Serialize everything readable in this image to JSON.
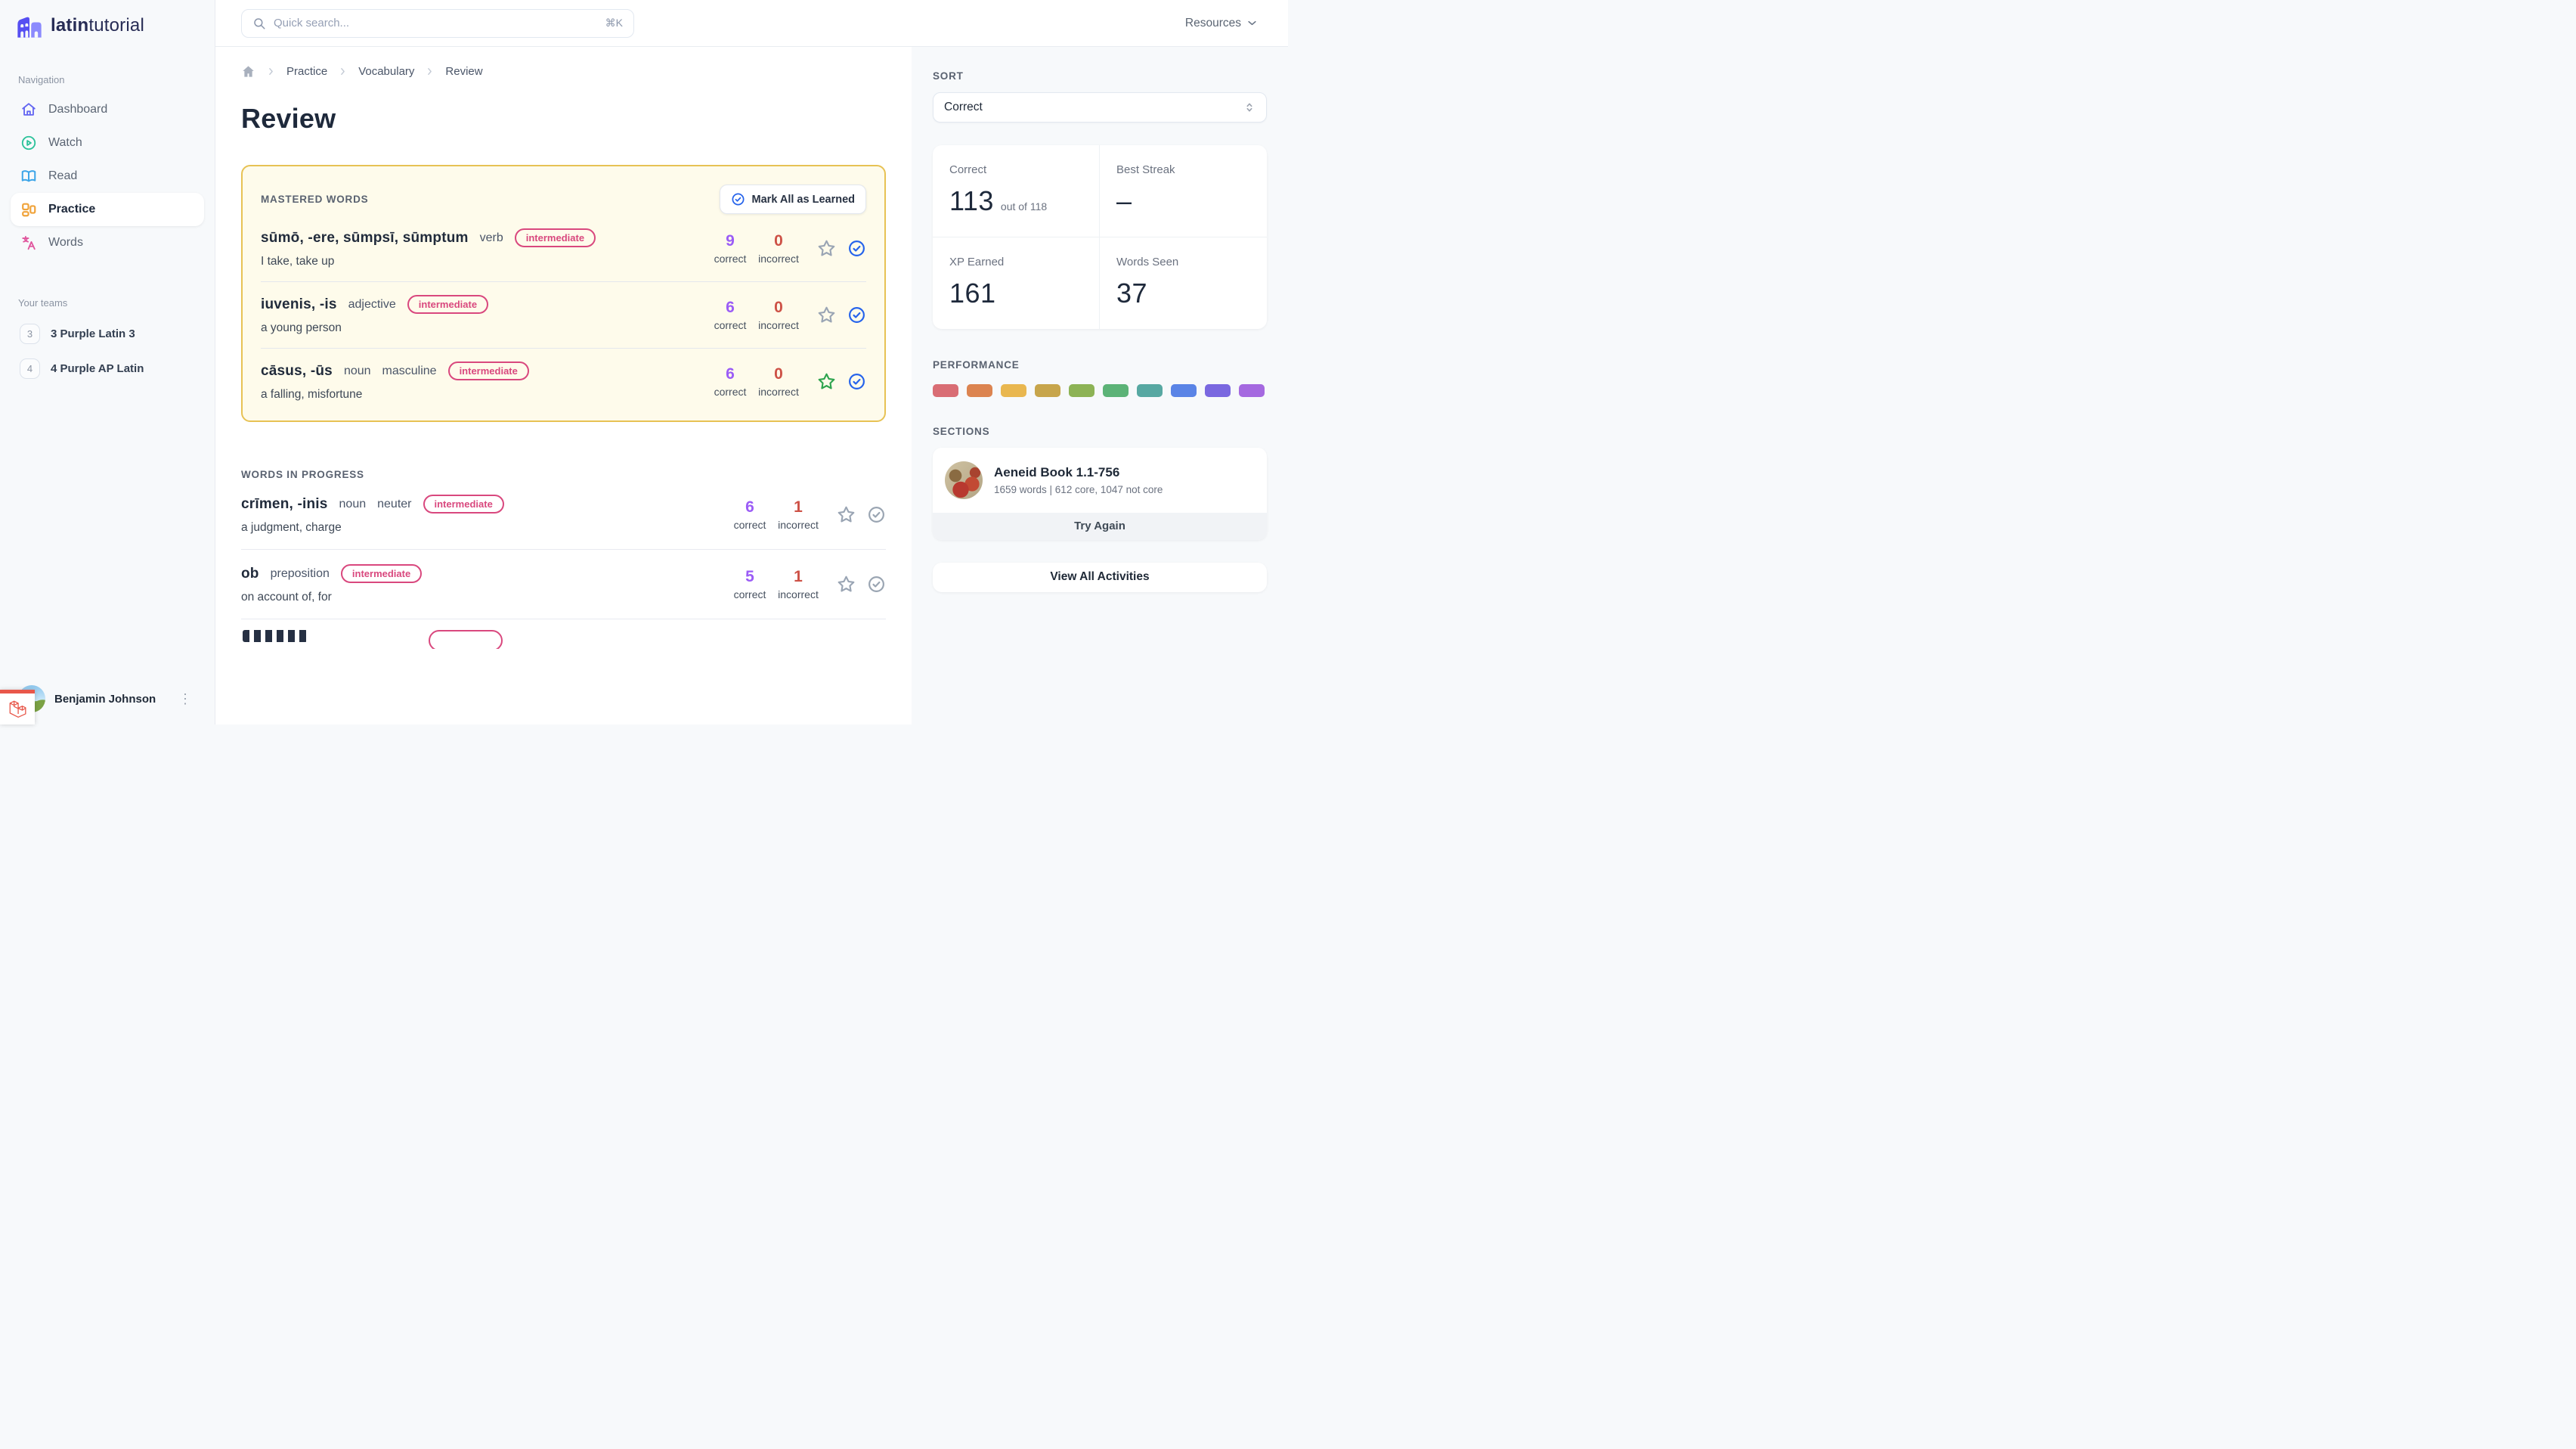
{
  "brand": {
    "name_bold": "latin",
    "name_light": "tutorial"
  },
  "topbar": {
    "search_placeholder": "Quick search...",
    "search_shortcut": "⌘K",
    "resources_label": "Resources"
  },
  "sidebar": {
    "nav_heading": "Navigation",
    "items": [
      {
        "label": "Dashboard",
        "icon": "home-icon",
        "active": false
      },
      {
        "label": "Watch",
        "icon": "play-circle-icon",
        "active": false
      },
      {
        "label": "Read",
        "icon": "open-book-icon",
        "active": false
      },
      {
        "label": "Practice",
        "icon": "grid-icon",
        "active": true
      },
      {
        "label": "Words",
        "icon": "translate-icon",
        "active": false
      }
    ],
    "teams_heading": "Your teams",
    "teams": [
      {
        "badge": "3",
        "label": "3 Purple Latin 3"
      },
      {
        "badge": "4",
        "label": "4 Purple AP Latin"
      }
    ],
    "user": {
      "name": "Benjamin Johnson",
      "menu_icon": "⋮"
    }
  },
  "breadcrumb": {
    "items": [
      "Practice",
      "Vocabulary",
      "Review"
    ]
  },
  "page_title": "Review",
  "labels": {
    "correct": "correct",
    "incorrect": "incorrect"
  },
  "mastered": {
    "heading": "MASTERED WORDS",
    "mark_all_label": "Mark All as Learned",
    "words": [
      {
        "headword": "sūmō, -ere, sūmpsī, sūmptum",
        "pos": "verb",
        "level": "intermediate",
        "definition": "I take, take up",
        "correct": "9",
        "incorrect": "0"
      },
      {
        "headword": "iuvenis, -is",
        "pos": "adjective",
        "level": "intermediate",
        "definition": "a young person",
        "correct": "6",
        "incorrect": "0"
      },
      {
        "headword": "cāsus, -ūs",
        "pos": "noun",
        "gender": "masculine",
        "level": "intermediate",
        "definition": "a falling, misfortune",
        "correct": "6",
        "incorrect": "0"
      }
    ]
  },
  "in_progress": {
    "heading": "WORDS IN PROGRESS",
    "words": [
      {
        "headword": "crīmen, -inis",
        "pos": "noun",
        "gender": "neuter",
        "level": "intermediate",
        "definition": "a judgment, charge",
        "correct": "6",
        "incorrect": "1"
      },
      {
        "headword": "ob",
        "pos": "preposition",
        "level": "intermediate",
        "definition": "on account of, for",
        "correct": "5",
        "incorrect": "1"
      }
    ]
  },
  "right_panel": {
    "sort": {
      "heading": "SORT",
      "selected": "Correct"
    },
    "stats": [
      {
        "label": "Correct",
        "value": "113",
        "suffix": "out of 118"
      },
      {
        "label": "Best Streak",
        "value": "–"
      },
      {
        "label": "XP Earned",
        "value": "161"
      },
      {
        "label": "Words Seen",
        "value": "37"
      }
    ],
    "performance": {
      "heading": "PERFORMANCE",
      "colors": [
        "#D96D74",
        "#DC8450",
        "#E9B74F",
        "#C7A54B",
        "#8DB355",
        "#5CB377",
        "#57A8A2",
        "#5A84E6",
        "#7A68E0",
        "#A569E0"
      ]
    },
    "sections": {
      "heading": "SECTIONS",
      "activity": {
        "title": "Aeneid Book 1.1-756",
        "meta": "1659 words | 612 core, 1047 not core",
        "action": "Try Again"
      },
      "view_all_label": "View All Activities"
    }
  },
  "accent_colors": {
    "brand": "#5B54F2",
    "pill": "#D9487E",
    "correct": "#9B5CF6",
    "incorrect": "#CD5146",
    "card_border": "#E7C254",
    "check": "#2563EB",
    "star_active": "#2EA44E"
  }
}
